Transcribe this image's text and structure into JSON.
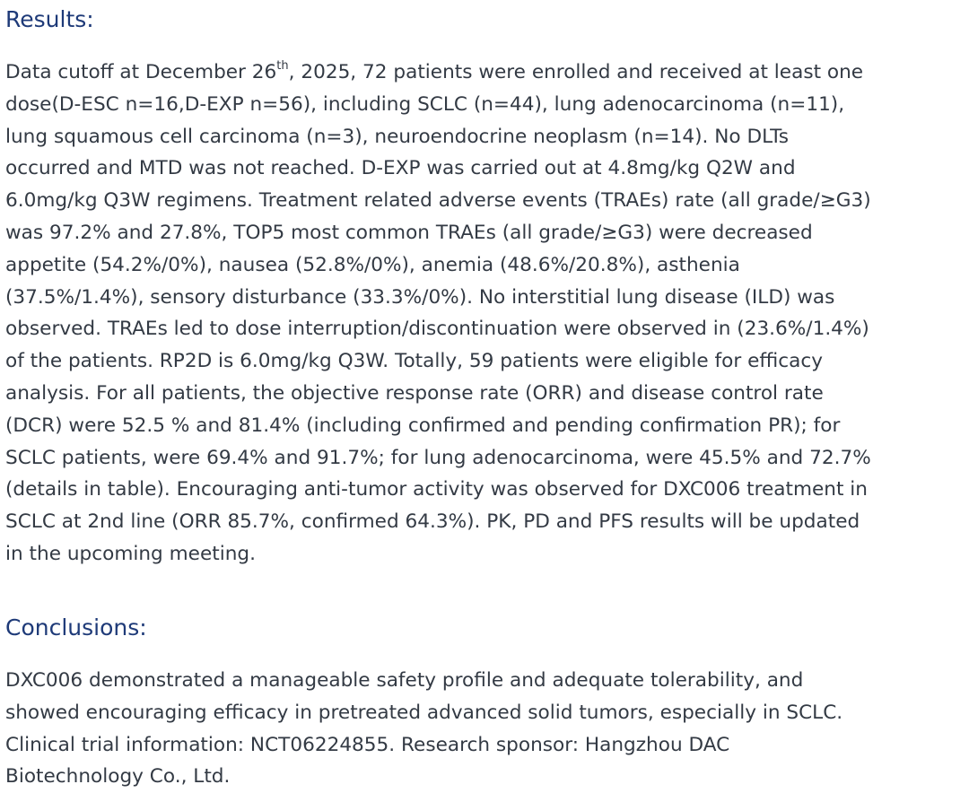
{
  "results": {
    "heading": "Results:",
    "line1": {
      "before_sup": "Data cutoff at December 26",
      "sup": "th",
      "after_sup": ", 2025, 72 patients were enrolled and received at least one"
    },
    "lines": [
      "dose(D-ESC n=16,D-EXP n=56),  including SCLC (n=44), lung adenocarcinoma (n=11),",
      "lung squamous cell carcinoma (n=3), neuroendocrine neoplasm (n=14). No DLTs",
      "occurred and MTD was not reached. D-EXP was carried out at 4.8mg/kg Q2W and",
      "6.0mg/kg Q3W regimens. Treatment related adverse events (TRAEs) rate (all grade/≥G3)",
      "was 97.2% and 27.8%, TOP5 most common TRAEs (all grade/≥G3) were decreased",
      "appetite (54.2%/0%), nausea (52.8%/0%), anemia (48.6%/20.8%), asthenia",
      "(37.5%/1.4%), sensory disturbance (33.3%/0%). No interstitial lung disease (ILD) was",
      "observed. TRAEs led to dose interruption/discontinuation were observed in (23.6%/1.4%)",
      "of the patients. RP2D is 6.0mg/kg Q3W. Totally, 59 patients were eligible for efficacy",
      "analysis. For all patients, the objective response rate (ORR) and disease control rate",
      "(DCR) were 52.5 % and 81.4% (including confirmed and pending confirmation PR); for",
      "SCLC patients, were 69.4% and 91.7%; for lung adenocarcinoma, were 45.5% and 72.7%",
      "(details in table). Encouraging anti-tumor activity was observed for DXC006 treatment in",
      "SCLC at 2nd line (ORR 85.7%, confirmed 64.3%). PK, PD and PFS results will be updated",
      "in the upcoming meeting."
    ]
  },
  "conclusions": {
    "heading": "Conclusions:",
    "lines": [
      "DXC006 demonstrated a manageable safety profile and adequate tolerability, and",
      "showed encouraging efficacy in pretreated advanced solid tumors, especially in SCLC.",
      "Clinical trial information: NCT06224855. Research sponsor: Hangzhou DAC",
      "Biotechnology Co., Ltd."
    ]
  },
  "colors": {
    "heading": "#1e3a78",
    "body_text": "#333a44",
    "background": "#ffffff"
  }
}
